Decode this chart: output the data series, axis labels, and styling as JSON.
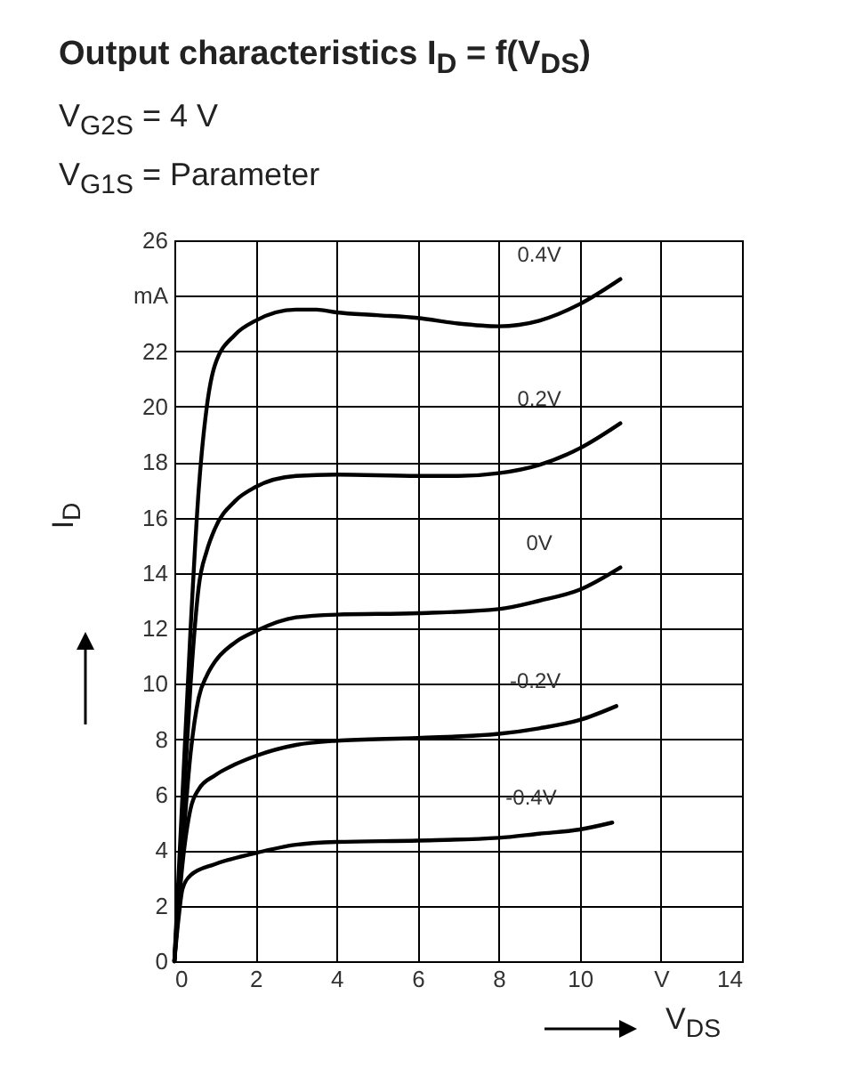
{
  "chart_data": {
    "type": "line",
    "title": "Output characteristics I$_{D}$ = f(V$_{DS}$)",
    "subtitle": "V$_{G2S}$ = 4 V",
    "annotations": [
      "V$_{G1S}$ = Parameter"
    ],
    "xlabel": "V$_{DS}$",
    "ylabel": "I$_{D}$",
    "xlim": [
      0,
      14
    ],
    "xticks": [
      0,
      2,
      4,
      6,
      8,
      10,
      {
        "value": 12,
        "label": "V"
      },
      14
    ],
    "ylim": [
      0,
      26
    ],
    "yticks": [
      0,
      2,
      4,
      6,
      8,
      10,
      12,
      14,
      16,
      18,
      20,
      22,
      {
        "value": 24,
        "label": "mA"
      },
      26
    ],
    "grid": true,
    "legend": false,
    "series": [
      {
        "name": "0.4V",
        "color": "#000000",
        "x": [
          0,
          0.2,
          0.4,
          0.6,
          0.8,
          1,
          1.5,
          2,
          3,
          3.5,
          4,
          5,
          6,
          7,
          8,
          9,
          10,
          11
        ],
        "values": [
          0,
          6,
          12,
          17,
          20,
          21.5,
          22.6,
          23.1,
          23.5,
          23.5,
          23.4,
          23.3,
          23.2,
          23,
          22.9,
          23.1,
          23.7,
          24.6
        ]
      },
      {
        "name": "0.2V",
        "color": "#000000",
        "x": [
          0,
          0.2,
          0.4,
          0.6,
          0.8,
          1,
          1.5,
          2,
          3,
          4,
          6,
          7,
          8,
          9,
          10,
          11
        ],
        "values": [
          0,
          5,
          10,
          13.5,
          14.8,
          15.6,
          16.6,
          17.1,
          17.5,
          17.55,
          17.5,
          17.5,
          17.6,
          17.9,
          18.5,
          19.4
        ]
      },
      {
        "name": "0V",
        "color": "#000000",
        "x": [
          0,
          0.2,
          0.4,
          0.6,
          0.8,
          1,
          1.5,
          2,
          3,
          4,
          6,
          8,
          9,
          10,
          11
        ],
        "values": [
          0,
          4,
          7.5,
          9.5,
          10.3,
          10.8,
          11.5,
          11.9,
          12.4,
          12.5,
          12.55,
          12.7,
          13,
          13.4,
          14.2
        ]
      },
      {
        "name": "-0.2V",
        "color": "#000000",
        "x": [
          0,
          0.2,
          0.4,
          0.6,
          1,
          1.5,
          2,
          3,
          4,
          6,
          8,
          9,
          10,
          10.9
        ],
        "values": [
          0,
          3.5,
          5.5,
          6.2,
          6.7,
          7.1,
          7.4,
          7.8,
          7.95,
          8.05,
          8.2,
          8.4,
          8.7,
          9.2
        ]
      },
      {
        "name": "-0.4V",
        "color": "#000000",
        "x": [
          0,
          0.1,
          0.2,
          0.4,
          1,
          2,
          3,
          4,
          6,
          8,
          9,
          10,
          10.8
        ],
        "values": [
          0,
          1.5,
          2.6,
          3.1,
          3.5,
          3.9,
          4.2,
          4.3,
          4.35,
          4.45,
          4.6,
          4.75,
          5
        ]
      }
    ]
  }
}
